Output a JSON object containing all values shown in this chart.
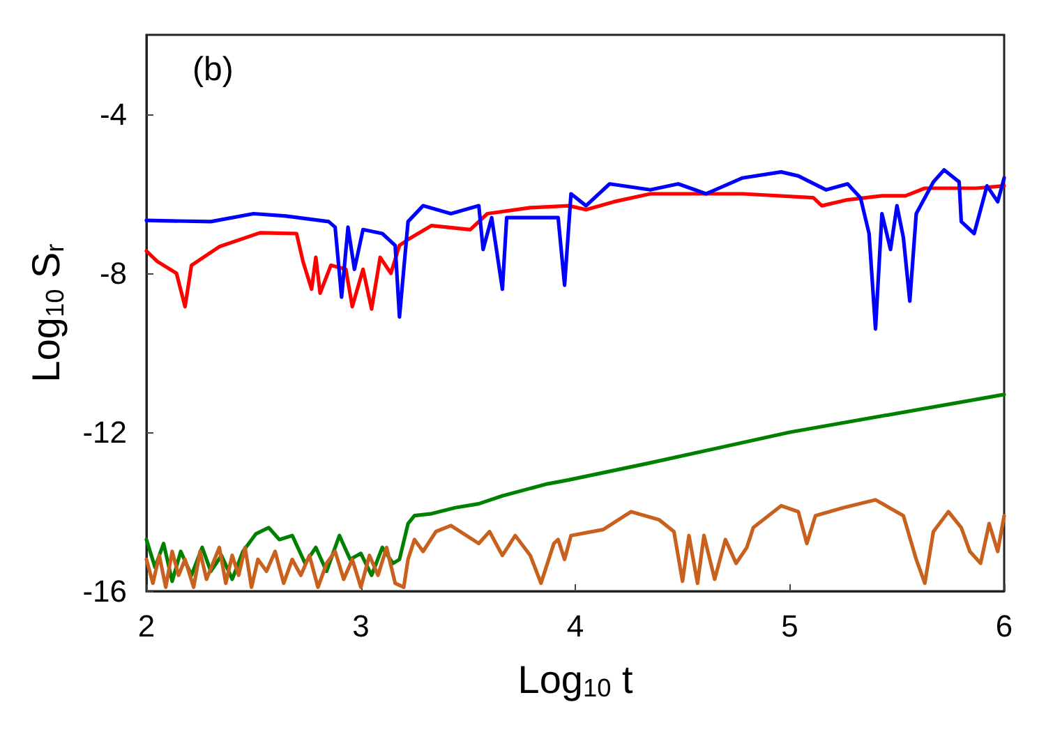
{
  "chart_data": {
    "type": "line",
    "xlabel": "Log$_{10}$ t",
    "ylabel": "Log$_{10}$ S$_{r}$",
    "annotations": [
      "(b)"
    ],
    "xlim": [
      2,
      6
    ],
    "ylim": [
      -16,
      -2
    ],
    "xticks": [
      2,
      3,
      4,
      5,
      6
    ],
    "yticks": [
      -4,
      -8,
      -12,
      -16
    ],
    "marker": "none",
    "line_style": "solid",
    "series": [
      {
        "color": "#ff0000",
        "x": [
          2.0,
          2.05,
          2.14,
          2.18,
          2.21,
          2.34,
          2.53,
          2.7,
          2.73,
          2.77,
          2.79,
          2.81,
          2.86,
          2.93,
          2.96,
          3.01,
          3.05,
          3.09,
          3.14,
          3.18,
          3.22,
          3.33,
          3.51,
          3.59,
          3.79,
          3.97,
          4.05,
          4.18,
          4.35,
          4.57,
          4.78,
          5.11,
          5.15,
          5.27,
          5.43,
          5.54,
          5.63,
          5.87,
          6.0
        ],
        "values": [
          -7.44,
          -7.7,
          -8.0,
          -8.84,
          -7.8,
          -7.33,
          -6.98,
          -7.0,
          -7.7,
          -8.4,
          -7.6,
          -8.5,
          -7.8,
          -7.9,
          -8.84,
          -7.9,
          -8.9,
          -7.6,
          -8.0,
          -7.3,
          -7.15,
          -6.8,
          -6.9,
          -6.5,
          -6.35,
          -6.3,
          -6.4,
          -6.2,
          -6.0,
          -6.0,
          -6.0,
          -6.1,
          -6.3,
          -6.15,
          -6.05,
          -6.05,
          -5.86,
          -5.86,
          -5.8
        ]
      },
      {
        "color": "#0000ff",
        "x": [
          2.0,
          2.3,
          2.5,
          2.65,
          2.85,
          2.88,
          2.91,
          2.94,
          2.97,
          3.01,
          3.1,
          3.16,
          3.18,
          3.22,
          3.29,
          3.42,
          3.55,
          3.57,
          3.61,
          3.66,
          3.68,
          3.79,
          3.92,
          3.95,
          3.98,
          4.05,
          4.16,
          4.35,
          4.48,
          4.61,
          4.78,
          4.96,
          5.04,
          5.17,
          5.27,
          5.33,
          5.37,
          5.4,
          5.43,
          5.47,
          5.5,
          5.53,
          5.56,
          5.59,
          5.67,
          5.72,
          5.79,
          5.8,
          5.86,
          5.92,
          5.97,
          6.0
        ],
        "values": [
          -6.67,
          -6.7,
          -6.5,
          -6.56,
          -6.7,
          -6.84,
          -8.6,
          -6.84,
          -7.9,
          -6.9,
          -7.0,
          -7.3,
          -9.1,
          -6.7,
          -6.3,
          -6.5,
          -6.3,
          -7.4,
          -6.6,
          -8.4,
          -6.6,
          -6.6,
          -6.6,
          -8.3,
          -6.0,
          -6.3,
          -5.75,
          -5.9,
          -5.75,
          -6.0,
          -5.6,
          -5.45,
          -5.55,
          -5.9,
          -5.75,
          -6.1,
          -7.0,
          -9.4,
          -6.5,
          -7.4,
          -6.3,
          -7.1,
          -8.7,
          -6.5,
          -5.7,
          -5.4,
          -5.7,
          -6.7,
          -7.0,
          -5.8,
          -6.2,
          -5.6
        ]
      },
      {
        "color": "#008000",
        "x": [
          2.0,
          2.04,
          2.08,
          2.12,
          2.16,
          2.21,
          2.26,
          2.3,
          2.35,
          2.4,
          2.45,
          2.51,
          2.57,
          2.62,
          2.68,
          2.74,
          2.79,
          2.84,
          2.9,
          2.95,
          3.0,
          3.05,
          3.1,
          3.15,
          3.18,
          3.22,
          3.25,
          3.33,
          3.44,
          3.55,
          3.66,
          3.87,
          3.97,
          4.35,
          5.0,
          6.0
        ],
        "values": [
          -14.7,
          -15.4,
          -14.8,
          -15.75,
          -15.0,
          -15.6,
          -14.9,
          -15.5,
          -15.1,
          -15.7,
          -15.0,
          -14.56,
          -14.4,
          -14.7,
          -14.6,
          -15.3,
          -14.9,
          -15.5,
          -14.6,
          -15.2,
          -15.05,
          -15.6,
          -14.9,
          -15.3,
          -15.2,
          -14.3,
          -14.1,
          -14.05,
          -13.9,
          -13.8,
          -13.6,
          -13.3,
          -13.2,
          -12.77,
          -12.0,
          -11.05
        ]
      },
      {
        "color": "#c8601e",
        "x": [
          2.0,
          2.03,
          2.06,
          2.09,
          2.12,
          2.15,
          2.18,
          2.22,
          2.25,
          2.28,
          2.31,
          2.34,
          2.37,
          2.4,
          2.43,
          2.46,
          2.49,
          2.52,
          2.56,
          2.6,
          2.64,
          2.68,
          2.72,
          2.76,
          2.8,
          2.84,
          2.88,
          2.92,
          2.96,
          3.0,
          3.04,
          3.08,
          3.12,
          3.16,
          3.2,
          3.22,
          3.25,
          3.29,
          3.35,
          3.42,
          3.55,
          3.6,
          3.66,
          3.72,
          3.79,
          3.84,
          3.9,
          3.92,
          3.95,
          3.98,
          4.13,
          4.26,
          4.39,
          4.46,
          4.5,
          4.53,
          4.57,
          4.6,
          4.65,
          4.7,
          4.75,
          4.8,
          4.83,
          4.96,
          5.04,
          5.08,
          5.12,
          5.25,
          5.4,
          5.53,
          5.59,
          5.63,
          5.67,
          5.74,
          5.8,
          5.84,
          5.89,
          5.93,
          5.97,
          6.0
        ],
        "values": [
          -15.2,
          -15.8,
          -15.1,
          -15.9,
          -15.0,
          -15.6,
          -15.2,
          -15.9,
          -15.0,
          -15.7,
          -15.3,
          -14.9,
          -15.8,
          -15.1,
          -15.6,
          -14.9,
          -15.9,
          -15.2,
          -15.5,
          -15.0,
          -15.8,
          -15.2,
          -15.6,
          -15.1,
          -15.9,
          -15.3,
          -15.0,
          -15.7,
          -15.2,
          -15.9,
          -15.1,
          -15.6,
          -14.9,
          -15.8,
          -15.9,
          -15.2,
          -14.7,
          -15.0,
          -14.5,
          -14.35,
          -14.8,
          -14.5,
          -15.1,
          -14.6,
          -15.1,
          -15.8,
          -14.8,
          -14.7,
          -15.2,
          -14.6,
          -14.45,
          -14.0,
          -14.2,
          -14.5,
          -15.75,
          -14.6,
          -15.8,
          -14.6,
          -15.7,
          -14.7,
          -15.3,
          -14.9,
          -14.4,
          -13.85,
          -14.0,
          -14.8,
          -14.1,
          -13.9,
          -13.7,
          -14.1,
          -15.2,
          -15.8,
          -14.5,
          -14.0,
          -14.4,
          -15.0,
          -15.3,
          -14.3,
          -15.0,
          -14.1
        ]
      }
    ]
  }
}
